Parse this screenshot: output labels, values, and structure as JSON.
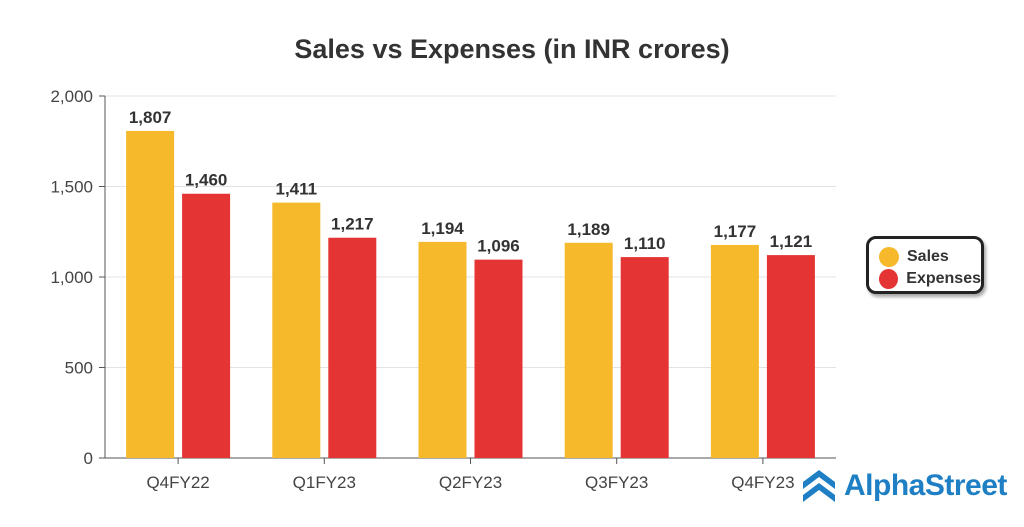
{
  "chart_data": {
    "type": "bar",
    "title": "Sales vs Expenses (in INR crores)",
    "xlabel": "",
    "ylabel": "",
    "ylim": [
      0,
      2000
    ],
    "yticks": [
      0,
      500,
      1000,
      1500,
      2000
    ],
    "ytick_labels": [
      "0",
      "500",
      "1,000",
      "1,500",
      "2,000"
    ],
    "grid": true,
    "legend_position": "right",
    "categories": [
      "Q4FY22",
      "Q1FY23",
      "Q2FY23",
      "Q3FY23",
      "Q4FY23"
    ],
    "series": [
      {
        "name": "Sales",
        "color": "#f6b92b",
        "values": [
          1807,
          1411,
          1194,
          1189,
          1177
        ],
        "labels": [
          "1,807",
          "1,411",
          "1,194",
          "1,189",
          "1,177"
        ]
      },
      {
        "name": "Expenses",
        "color": "#e43434",
        "values": [
          1460,
          1217,
          1096,
          1110,
          1121
        ],
        "labels": [
          "1,460",
          "1,217",
          "1,096",
          "1,110",
          "1,121"
        ]
      }
    ]
  },
  "brand": {
    "name": "AlphaStreet",
    "color": "#1f7fc4",
    "icon": "alphastreet-logo-icon"
  }
}
